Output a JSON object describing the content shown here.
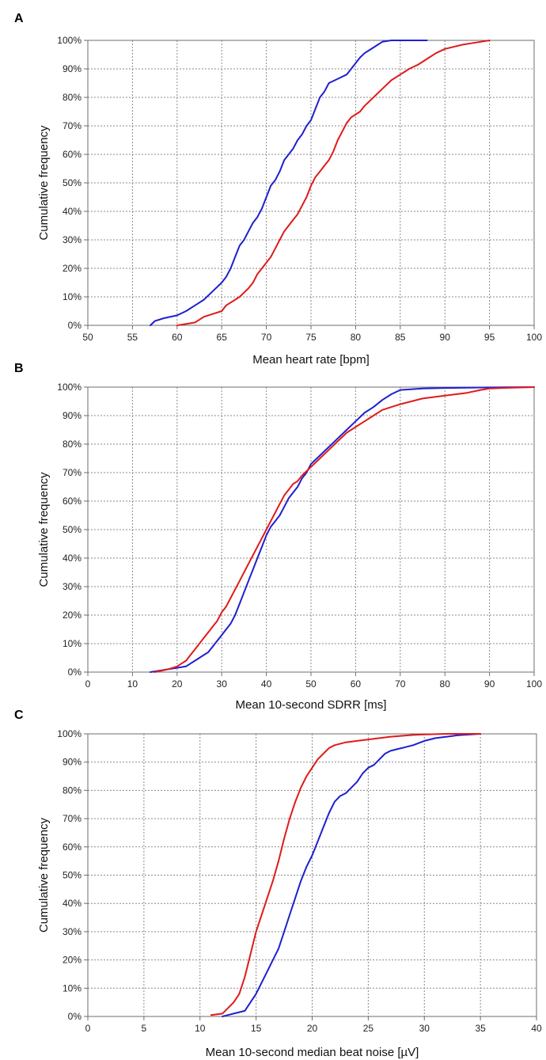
{
  "chart_data": [
    {
      "panel": "A",
      "type": "line",
      "xlabel": "Mean heart rate [bpm]",
      "ylabel": "Cumulative frequency",
      "xlim": [
        50,
        100
      ],
      "ylim": [
        0,
        100
      ],
      "xticks": [
        50,
        55,
        60,
        65,
        70,
        75,
        80,
        85,
        90,
        95,
        100
      ],
      "yticks": [
        0,
        10,
        20,
        30,
        40,
        50,
        60,
        70,
        80,
        90,
        100
      ],
      "ytick_labels": [
        "0%",
        "10%",
        "20%",
        "30%",
        "40%",
        "50%",
        "60%",
        "70%",
        "80%",
        "90%",
        "100%"
      ],
      "grid": true,
      "series": [
        {
          "name": "blue",
          "color": "#1f1fd0",
          "x": [
            57,
            57.5,
            58.5,
            60,
            61,
            62,
            63,
            64,
            65,
            65.5,
            66,
            66.5,
            67,
            67.5,
            68,
            68.5,
            69,
            69.5,
            70,
            70.5,
            71,
            71.5,
            72,
            72.5,
            73,
            73.5,
            74,
            74.5,
            75,
            75.5,
            76,
            76.5,
            77,
            78,
            79,
            79.5,
            80,
            80.5,
            81,
            81.5,
            82,
            82.5,
            83,
            84,
            86,
            88
          ],
          "y": [
            0,
            1.5,
            2.5,
            3.5,
            5,
            7,
            9,
            12,
            15,
            17,
            20,
            24,
            28,
            30,
            33,
            36,
            38,
            41,
            45,
            49,
            51,
            54,
            58,
            60,
            62,
            65,
            67,
            70,
            72,
            76,
            80,
            82,
            85,
            86.5,
            88,
            90,
            92,
            94,
            95.5,
            96.5,
            97.5,
            98.5,
            99.5,
            100,
            100,
            100
          ]
        },
        {
          "name": "red",
          "color": "#e01a1a",
          "x": [
            60,
            61,
            62,
            62.5,
            63,
            64,
            65,
            65.5,
            66,
            67,
            68,
            68.5,
            69,
            69.5,
            70,
            70.5,
            71,
            71.5,
            72,
            72.5,
            73,
            73.5,
            74,
            74.5,
            75,
            75.5,
            76,
            76.5,
            77,
            77.5,
            78,
            78.5,
            79,
            79.5,
            80,
            80.5,
            81,
            82,
            83,
            84,
            85,
            86,
            87,
            88,
            89,
            90,
            92,
            94,
            95
          ],
          "y": [
            0,
            0.5,
            1,
            2,
            3,
            4,
            5,
            7,
            8,
            10,
            13,
            15,
            18,
            20,
            22,
            24,
            27,
            30,
            33,
            35,
            37,
            39,
            42,
            45,
            49,
            52,
            54,
            56,
            58,
            61,
            65,
            68,
            71,
            73,
            74,
            75,
            77,
            80,
            83,
            86,
            88,
            90,
            91.5,
            93.5,
            95.5,
            97,
            98.5,
            99.5,
            100
          ]
        }
      ]
    },
    {
      "panel": "B",
      "type": "line",
      "xlabel": "Mean 10-second SDRR [ms]",
      "ylabel": "Cumulative frequency",
      "xlim": [
        0,
        100
      ],
      "ylim": [
        0,
        100
      ],
      "xticks": [
        0,
        10,
        20,
        30,
        40,
        50,
        60,
        70,
        80,
        90,
        100
      ],
      "yticks": [
        0,
        10,
        20,
        30,
        40,
        50,
        60,
        70,
        80,
        90,
        100
      ],
      "ytick_labels": [
        "0%",
        "10%",
        "20%",
        "30%",
        "40%",
        "50%",
        "60%",
        "70%",
        "80%",
        "90%",
        "100%"
      ],
      "grid": true,
      "series": [
        {
          "name": "blue",
          "color": "#1f1fd0",
          "x": [
            14,
            16,
            18,
            20,
            22,
            23,
            24,
            25,
            26,
            27,
            28,
            29,
            30,
            31,
            32,
            33,
            34,
            35,
            36,
            37,
            38,
            39,
            40,
            41,
            42,
            43,
            44,
            45,
            46,
            47,
            48,
            49,
            50,
            52,
            54,
            56,
            58,
            60,
            62,
            64,
            66,
            68,
            70,
            75,
            80,
            90,
            100
          ],
          "y": [
            0,
            0.5,
            1,
            1.5,
            2,
            3,
            4,
            5,
            6,
            7,
            9,
            11,
            13,
            15,
            17,
            20,
            24,
            28,
            32,
            36,
            40,
            44,
            48,
            51,
            53,
            55,
            58,
            61,
            63,
            65,
            68,
            70,
            73,
            76,
            79,
            82,
            85,
            88,
            91,
            93,
            95.5,
            97.5,
            99,
            99.5,
            99.7,
            99.9,
            100
          ]
        },
        {
          "name": "red",
          "color": "#e01a1a",
          "x": [
            15,
            18,
            20,
            21,
            22,
            23,
            24,
            25,
            26,
            27,
            28,
            29,
            30,
            31,
            32,
            33,
            34,
            35,
            36,
            37,
            38,
            39,
            40,
            41,
            42,
            43,
            44,
            45,
            46,
            47,
            48,
            50,
            52,
            54,
            56,
            58,
            60,
            62,
            64,
            66,
            68,
            70,
            75,
            80,
            85,
            88,
            90,
            95,
            100
          ],
          "y": [
            0,
            1,
            2,
            3,
            4,
            6,
            8,
            10,
            12,
            14,
            16,
            18,
            21,
            23,
            26,
            29,
            32,
            35,
            38,
            41,
            44,
            47,
            50,
            53,
            56,
            59,
            62,
            64,
            66,
            67,
            69,
            72,
            75,
            78,
            81,
            84,
            86,
            88,
            90,
            92,
            93,
            94,
            96,
            97,
            98,
            99,
            99.5,
            99.8,
            100
          ]
        }
      ]
    },
    {
      "panel": "C",
      "type": "line",
      "xlabel": "Mean 10-second median beat noise [µV]",
      "ylabel": "Cumulative frequency",
      "xlim": [
        0,
        40
      ],
      "ylim": [
        0,
        100
      ],
      "xticks": [
        0,
        5,
        10,
        15,
        20,
        25,
        30,
        35,
        40
      ],
      "yticks": [
        0,
        10,
        20,
        30,
        40,
        50,
        60,
        70,
        80,
        90,
        100
      ],
      "ytick_labels": [
        "0%",
        "10%",
        "20%",
        "30%",
        "40%",
        "50%",
        "60%",
        "70%",
        "80%",
        "90%",
        "100%"
      ],
      "grid": true,
      "series": [
        {
          "name": "blue",
          "color": "#1f1fd0",
          "x": [
            12,
            12.5,
            13,
            14,
            14.5,
            15,
            15.5,
            16,
            16.5,
            17,
            17.5,
            18,
            18.5,
            19,
            19.5,
            20,
            20.5,
            21,
            21.5,
            22,
            22.5,
            23,
            23.5,
            24,
            24.5,
            25,
            25.5,
            26,
            26.5,
            27,
            28,
            29,
            30,
            31,
            32,
            33,
            35
          ],
          "y": [
            0,
            0.5,
            1,
            2,
            5,
            8,
            12,
            16,
            20,
            24,
            30,
            36,
            42,
            48,
            53,
            57,
            62,
            67,
            72,
            76,
            78,
            79,
            81,
            83,
            86,
            88,
            89,
            91,
            93,
            94,
            95,
            96,
            97.5,
            98.5,
            99,
            99.5,
            100
          ]
        },
        {
          "name": "red",
          "color": "#e01a1a",
          "x": [
            11,
            12,
            12.5,
            13,
            13.5,
            14,
            14.5,
            15,
            15.5,
            16,
            16.5,
            17,
            17.5,
            18,
            18.5,
            19,
            19.5,
            20,
            20.5,
            21,
            21.5,
            22,
            23,
            24,
            25,
            26,
            27,
            28,
            29,
            30,
            32,
            35
          ],
          "y": [
            0.5,
            1,
            3,
            5,
            8,
            14,
            22,
            30,
            36,
            42,
            48,
            55,
            63,
            70,
            76,
            81,
            85,
            88,
            91,
            93,
            95,
            96,
            97,
            97.5,
            98,
            98.5,
            99,
            99.3,
            99.6,
            99.8,
            100,
            100
          ]
        }
      ]
    }
  ]
}
